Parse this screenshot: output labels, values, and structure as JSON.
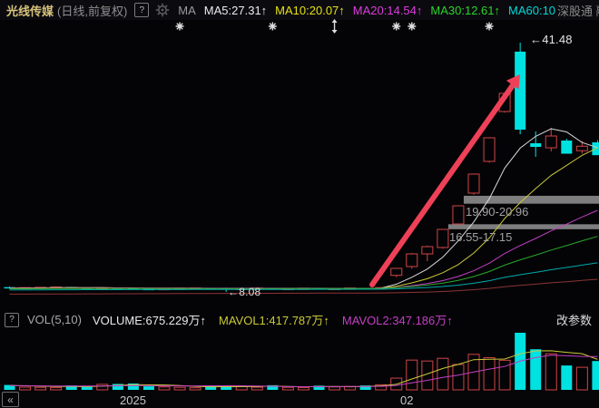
{
  "header": {
    "stock_name": "光线传媒",
    "mode": "(日线,前复权)",
    "help_icon": "?",
    "ma_label": "MA",
    "ma_items": [
      {
        "label": "MA5:27.31",
        "arrow": "↑",
        "color": "#ececec"
      },
      {
        "label": "MA10:20.07",
        "arrow": "↑",
        "color": "#e6e112"
      },
      {
        "label": "MA20:14.54",
        "arrow": "↑",
        "color": "#dd3cdd"
      },
      {
        "label": "MA30:12.61",
        "arrow": "↑",
        "color": "#2bd52b"
      },
      {
        "label": "MA60:10",
        "arrow": "",
        "color": "#00d8d8"
      }
    ],
    "right_text": "深股通 融"
  },
  "volume_header": {
    "help_icon": "?",
    "vol_label": "VOL(5,10)",
    "volume": "VOLUME:675.229万",
    "volume_arrow": "↑",
    "mavol1": "MAVOL1:417.787万",
    "mavol1_arrow": "↑",
    "mavol2": "MAVOL2:347.186万",
    "mavol2_arrow": "↑",
    "change_params": "改参数"
  },
  "x_axis": {
    "collapse_icon": "«",
    "labels": [
      {
        "text": "2025",
        "index": 8
      },
      {
        "text": "02",
        "index": 26
      }
    ]
  },
  "chart_data": {
    "type": "candlestick+volume",
    "title": "光线传媒 日线(前复权)",
    "colors": {
      "up": "#cf4545",
      "down": "#00e1e1",
      "arrow": "#ee4157",
      "gap_band": "#7e7e7e",
      "marker": "#dedede",
      "mavol1": "#caca38",
      "mavol2": "#c43fc4"
    },
    "high_label": {
      "value": 41.48,
      "text": "←41.48",
      "index": 33
    },
    "low_label": {
      "value": 8.08,
      "text": "←8.08",
      "index": 14
    },
    "gaps": [
      {
        "from": 19.9,
        "to": 20.96,
        "label": "19.90-20.96",
        "start_index": 29
      },
      {
        "from": 16.55,
        "to": 17.15,
        "label": "16.55-17.15",
        "start_index": 28
      }
    ],
    "event_markers": [
      {
        "index": 11,
        "type": "star"
      },
      {
        "index": 17,
        "type": "star"
      },
      {
        "index": 21,
        "type": "updown"
      },
      {
        "index": 25,
        "type": "star"
      },
      {
        "index": 26,
        "type": "star"
      },
      {
        "index": 31,
        "type": "star"
      }
    ],
    "ma_lines": [
      {
        "period": 5,
        "color": "#d8d8d8",
        "seed": 8.6
      },
      {
        "period": 10,
        "color": "#caca38",
        "seed": 8.6
      },
      {
        "period": 20,
        "color": "#c43fc4",
        "seed": 8.55
      },
      {
        "period": 30,
        "color": "#2aa82a",
        "seed": 8.5
      },
      {
        "period": 60,
        "color": "#00aaaa",
        "seed": 8.35
      },
      {
        "period": 120,
        "color": "#8b3535",
        "seed": 7.78
      }
    ],
    "mavol_lines": [
      {
        "period": 5,
        "color": "#caca38",
        "seed": 50
      },
      {
        "period": 10,
        "color": "#c43fc4",
        "seed": 50
      }
    ],
    "candles": [
      [
        8.72,
        8.8,
        8.55,
        8.6,
        58
      ],
      [
        8.6,
        8.7,
        8.56,
        8.66,
        32
      ],
      [
        8.66,
        8.74,
        8.62,
        8.7,
        30
      ],
      [
        8.7,
        8.77,
        8.66,
        8.74,
        28
      ],
      [
        8.74,
        8.76,
        8.6,
        8.64,
        52
      ],
      [
        8.64,
        8.68,
        8.5,
        8.55,
        45
      ],
      [
        8.55,
        8.68,
        8.52,
        8.64,
        65
      ],
      [
        8.64,
        8.66,
        8.52,
        8.56,
        70
      ],
      [
        8.56,
        8.6,
        8.44,
        8.48,
        75
      ],
      [
        8.48,
        8.55,
        8.42,
        8.46,
        42
      ],
      [
        8.46,
        8.58,
        8.44,
        8.54,
        35
      ],
      [
        8.54,
        8.62,
        8.5,
        8.59,
        30
      ],
      [
        8.59,
        8.64,
        8.55,
        8.62,
        25
      ],
      [
        8.62,
        8.64,
        8.48,
        8.52,
        48
      ],
      [
        8.62,
        8.66,
        8.08,
        8.45,
        50
      ],
      [
        8.45,
        8.6,
        8.42,
        8.56,
        38
      ],
      [
        8.56,
        8.64,
        8.52,
        8.61,
        32
      ],
      [
        8.61,
        8.63,
        8.45,
        8.5,
        55
      ],
      [
        8.5,
        8.58,
        8.46,
        8.55,
        30
      ],
      [
        8.55,
        8.62,
        8.51,
        8.59,
        28
      ],
      [
        8.59,
        8.61,
        8.46,
        8.51,
        50
      ],
      [
        8.51,
        8.59,
        8.48,
        8.56,
        35
      ],
      [
        8.56,
        8.64,
        8.52,
        8.61,
        40
      ],
      [
        8.61,
        8.63,
        8.49,
        8.53,
        52
      ],
      [
        8.53,
        8.7,
        8.5,
        8.66,
        60
      ],
      [
        10.3,
        11.3,
        10.05,
        11.24,
        139
      ],
      [
        11.48,
        13.3,
        11.2,
        13.18,
        352
      ],
      [
        13.18,
        14.3,
        12.21,
        14.15,
        341
      ],
      [
        14.03,
        16.5,
        13.9,
        16.46,
        373
      ],
      [
        17.19,
        19.65,
        17.05,
        19.62,
        300
      ],
      [
        21.32,
        23.95,
        21.1,
        23.87,
        420
      ],
      [
        25.57,
        28.8,
        25.4,
        28.73,
        380
      ],
      [
        32.25,
        34.75,
        32.1,
        34.68,
        350
      ],
      [
        40.27,
        41.48,
        29.2,
        29.82,
        675.229
      ],
      [
        28.0,
        29.58,
        26.18,
        27.51,
        480
      ],
      [
        27.39,
        30.06,
        26.9,
        28.97,
        427
      ],
      [
        28.36,
        28.6,
        26.7,
        26.6,
        288
      ],
      [
        27.0,
        28.3,
        26.6,
        27.6,
        267
      ],
      [
        28.12,
        28.4,
        26.6,
        26.4,
        341
      ]
    ]
  }
}
